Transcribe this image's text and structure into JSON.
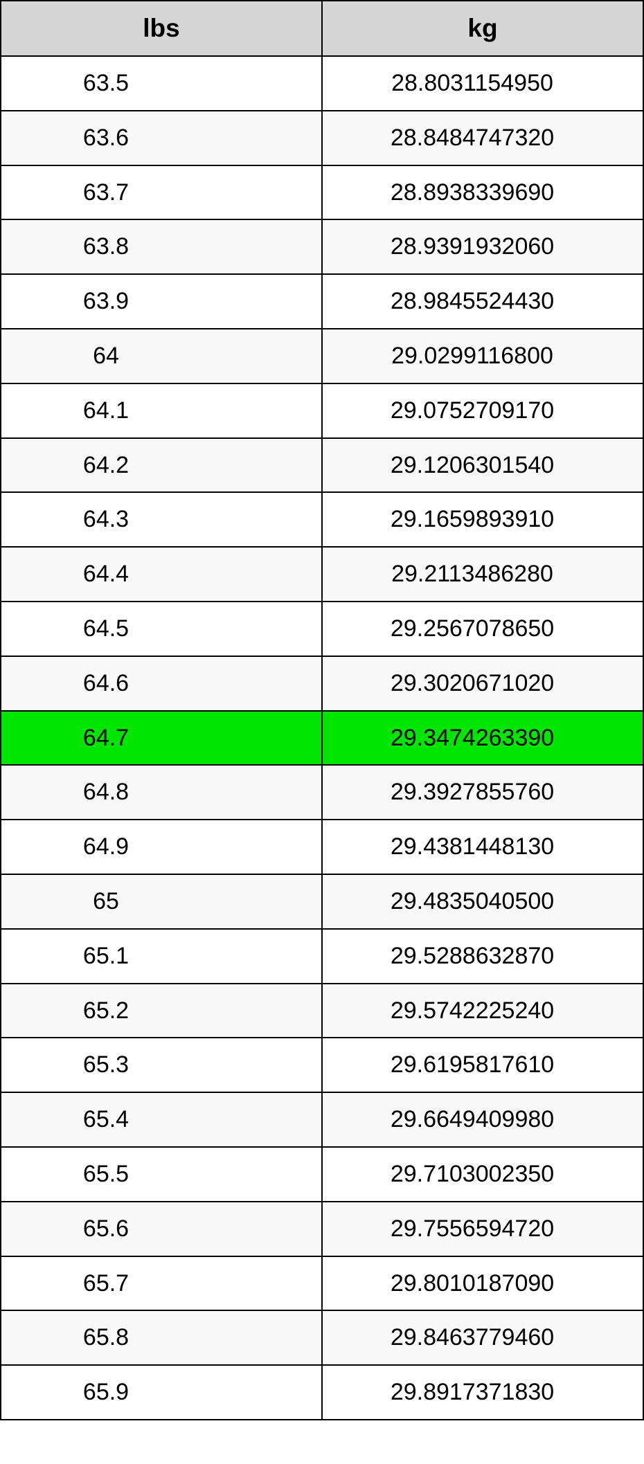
{
  "table": {
    "header_bg": "#d5d5d5",
    "row_alt_bg": "#f8f8f8",
    "row_bg": "#ffffff",
    "highlight_bg": "#00e600",
    "border_color": "#000000",
    "columns": [
      "lbs",
      "kg"
    ],
    "highlight_index": 12,
    "rows": [
      {
        "lbs": "63.5",
        "kg": "28.8031154950"
      },
      {
        "lbs": "63.6",
        "kg": "28.8484747320"
      },
      {
        "lbs": "63.7",
        "kg": "28.8938339690"
      },
      {
        "lbs": "63.8",
        "kg": "28.9391932060"
      },
      {
        "lbs": "63.9",
        "kg": "28.9845524430"
      },
      {
        "lbs": "64",
        "kg": "29.0299116800"
      },
      {
        "lbs": "64.1",
        "kg": "29.0752709170"
      },
      {
        "lbs": "64.2",
        "kg": "29.1206301540"
      },
      {
        "lbs": "64.3",
        "kg": "29.1659893910"
      },
      {
        "lbs": "64.4",
        "kg": "29.2113486280"
      },
      {
        "lbs": "64.5",
        "kg": "29.2567078650"
      },
      {
        "lbs": "64.6",
        "kg": "29.3020671020"
      },
      {
        "lbs": "64.7",
        "kg": "29.3474263390"
      },
      {
        "lbs": "64.8",
        "kg": "29.3927855760"
      },
      {
        "lbs": "64.9",
        "kg": "29.4381448130"
      },
      {
        "lbs": "65",
        "kg": "29.4835040500"
      },
      {
        "lbs": "65.1",
        "kg": "29.5288632870"
      },
      {
        "lbs": "65.2",
        "kg": "29.5742225240"
      },
      {
        "lbs": "65.3",
        "kg": "29.6195817610"
      },
      {
        "lbs": "65.4",
        "kg": "29.6649409980"
      },
      {
        "lbs": "65.5",
        "kg": "29.7103002350"
      },
      {
        "lbs": "65.6",
        "kg": "29.7556594720"
      },
      {
        "lbs": "65.7",
        "kg": "29.8010187090"
      },
      {
        "lbs": "65.8",
        "kg": "29.8463779460"
      },
      {
        "lbs": "65.9",
        "kg": "29.8917371830"
      }
    ]
  }
}
